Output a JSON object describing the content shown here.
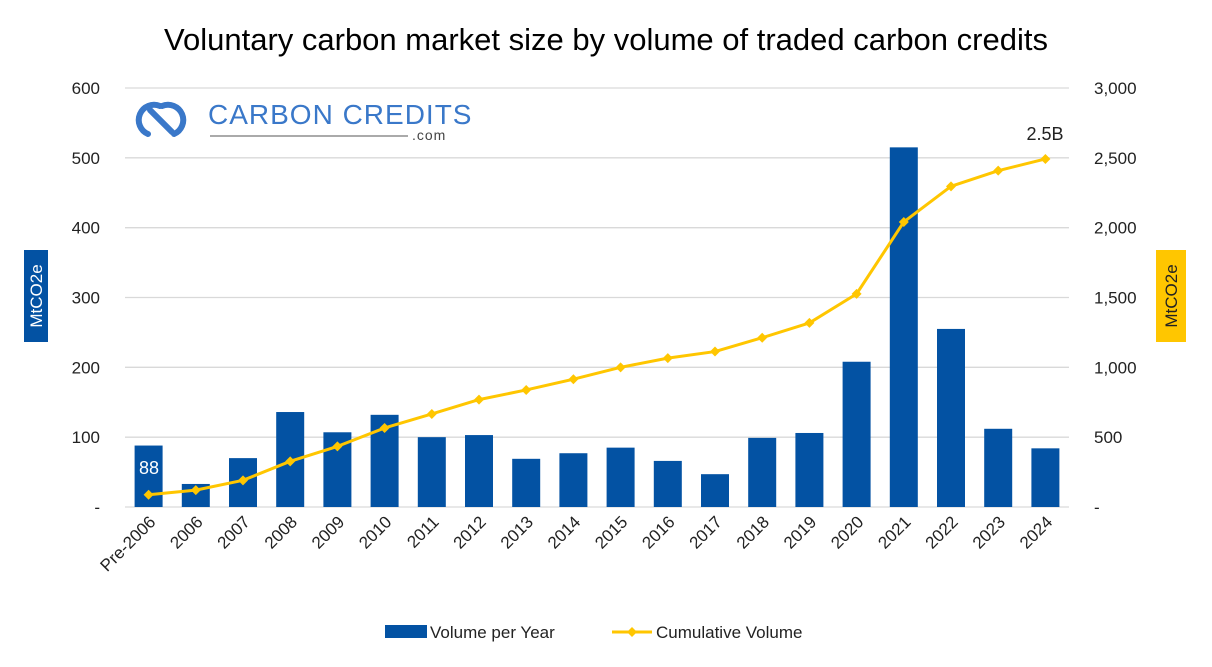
{
  "chart_data": {
    "type": "bar+line",
    "title": "Voluntary carbon market size by volume of traded carbon credits",
    "categories": [
      "Pre-2006",
      "2006",
      "2007",
      "2008",
      "2009",
      "2010",
      "2011",
      "2012",
      "2013",
      "2014",
      "2015",
      "2016",
      "2017",
      "2018",
      "2019",
      "2020",
      "2021",
      "2022",
      "2023",
      "2024"
    ],
    "series": [
      {
        "name": "Volume per Year",
        "type": "bar",
        "axis": "left",
        "color": "#0352a3",
        "values": [
          88,
          33,
          70,
          136,
          107,
          132,
          100,
          103,
          69,
          77,
          85,
          66,
          47,
          99,
          106,
          208,
          515,
          255,
          112,
          84
        ]
      },
      {
        "name": "Cumulative Volume",
        "type": "line",
        "axis": "right",
        "color": "#ffc600",
        "values": [
          88,
          121,
          191,
          327,
          434,
          566,
          666,
          769,
          838,
          915,
          1000,
          1066,
          1113,
          1212,
          1318,
          1526,
          2041,
          2296,
          2408,
          2492
        ]
      }
    ],
    "ylabel_left": "MtCO2e",
    "ylabel_right": "MtCO2e",
    "ylim_left": [
      0,
      600
    ],
    "ylim_right": [
      0,
      3000
    ],
    "yticks_left": [
      "-",
      "100",
      "200",
      "300",
      "400",
      "500",
      "600"
    ],
    "yticks_right": [
      "-",
      "500",
      "1,000",
      "1,500",
      "2,000",
      "2,500",
      "3,000"
    ],
    "data_labels": {
      "bar_first": "88",
      "line_last": "2.5B"
    },
    "grid": true,
    "legend_position": "bottom"
  },
  "logo": {
    "name": "CARBON CREDITS",
    "suffix": ".com"
  },
  "colors": {
    "bar": "#0352a3",
    "line": "#ffc600",
    "grid": "#d9d9d9",
    "logo": "#3a78c9"
  }
}
